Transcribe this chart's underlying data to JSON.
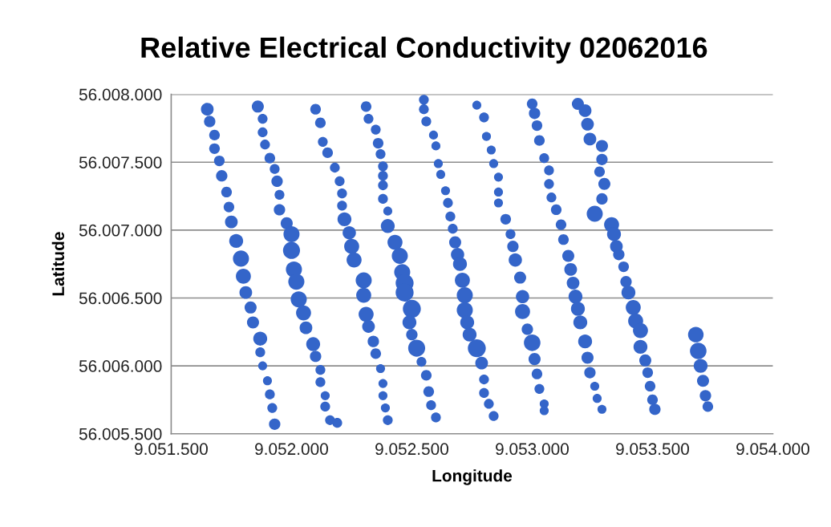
{
  "chart_data": {
    "type": "bubble",
    "title": "Relative Electrical Conductivity 02062016",
    "xlabel": "Longitude",
    "ylabel": "Latitude",
    "xlim": [
      9051500,
      9054000
    ],
    "xticks": [
      {
        "value": 9051500,
        "label": "9.051.500"
      },
      {
        "value": 9052000,
        "label": "9.052.000"
      },
      {
        "value": 9052500,
        "label": "9.052.500"
      },
      {
        "value": 9053000,
        "label": "9.053.000"
      },
      {
        "value": 9053500,
        "label": "9.053.500"
      },
      {
        "value": 9054000,
        "label": "9.054.000"
      }
    ],
    "ylim": [
      56005500,
      56008000
    ],
    "yticks": [
      {
        "value": 56005500,
        "label": "56.005.500"
      },
      {
        "value": 56006000,
        "label": "56.006.000"
      },
      {
        "value": 56006500,
        "label": "56.006.500"
      },
      {
        "value": 56007000,
        "label": "56.007.000"
      },
      {
        "value": 56007500,
        "label": "56.007.500"
      },
      {
        "value": 56008000,
        "label": "56.008.000"
      }
    ],
    "grid": "y",
    "legend": false,
    "marker": "circle",
    "series": [
      {
        "color": "#3465c9",
        "x": [
          9051650,
          9051660,
          9051680,
          9051680,
          9051700,
          9051710,
          9051730,
          9051740,
          9051750,
          9051770,
          9051790,
          9051800,
          9051810,
          9051830,
          9051840,
          9051870,
          9051870,
          9051880,
          9051900,
          9051910,
          9051920,
          9051930,
          9051860,
          9051880,
          9051880,
          9051890,
          9051910,
          9051930,
          9051940,
          9051950,
          9051950,
          9051980,
          9052000,
          9052000,
          9052010,
          9052020,
          9052030,
          9052050,
          9052060,
          9052090,
          9052100,
          9052120,
          9052120,
          9052140,
          9052140,
          9052160,
          9052190,
          9052100,
          9052120,
          9052130,
          9052150,
          9052180,
          9052200,
          9052210,
          9052210,
          9052220,
          9052240,
          9052250,
          9052260,
          9052300,
          9052300,
          9052310,
          9052320,
          9052340,
          9052350,
          9052370,
          9052380,
          9052380,
          9052390,
          9052400,
          9052310,
          9052320,
          9052350,
          9052360,
          9052370,
          9052380,
          9052380,
          9052380,
          9052380,
          9052400,
          9052400,
          9052430,
          9052450,
          9052460,
          9052470,
          9052470,
          9052500,
          9052490,
          9052500,
          9052520,
          9052540,
          9052560,
          9052570,
          9052580,
          9052600,
          9052550,
          9052550,
          9052560,
          9052590,
          9052600,
          9052610,
          9052620,
          9052640,
          9052650,
          9052660,
          9052670,
          9052680,
          9052690,
          9052700,
          9052710,
          9052720,
          9052720,
          9052730,
          9052740,
          9052770,
          9052790,
          9052800,
          9052800,
          9052820,
          9052840,
          9052770,
          9052800,
          9052810,
          9052830,
          9052840,
          9052860,
          9052860,
          9052860,
          9052890,
          9052910,
          9052920,
          9052930,
          9052950,
          9052960,
          9052960,
          9052980,
          9053000,
          9053010,
          9053020,
          9053030,
          9053050,
          9053050,
          9053000,
          9053010,
          9053020,
          9053030,
          9053050,
          9053070,
          9053070,
          9053080,
          9053100,
          9053120,
          9053130,
          9053150,
          9053160,
          9053170,
          9053180,
          9053190,
          9053200,
          9053220,
          9053230,
          9053240,
          9053260,
          9053270,
          9053290,
          9053190,
          9053220,
          9053230,
          9053240,
          9053290,
          9053290,
          9053280,
          9053300,
          9053290,
          9053260,
          9053330,
          9053340,
          9053350,
          9053360,
          9053380,
          9053390,
          9053400,
          9053420,
          9053430,
          9053450,
          9053450,
          9053470,
          9053480,
          9053490,
          9053500,
          9053510,
          9053680,
          9053690,
          9053700,
          9053710,
          9053720,
          9053730
        ],
        "values": [
          56007890,
          56007800,
          56007700,
          56007600,
          56007510,
          56007400,
          56007280,
          56007170,
          56007060,
          56006920,
          56006790,
          56006660,
          56006540,
          56006430,
          56006320,
          56006200,
          56006100,
          56006000,
          56005890,
          56005790,
          56005690,
          56005570,
          56007910,
          56007820,
          56007720,
          56007630,
          56007530,
          56007450,
          56007360,
          56007260,
          56007150,
          56007050,
          56006970,
          56006850,
          56006710,
          56006620,
          56006490,
          56006390,
          56006280,
          56006160,
          56006070,
          56005970,
          56005880,
          56005780,
          56005700,
          56005600,
          56005580,
          56007890,
          56007790,
          56007650,
          56007570,
          56007460,
          56007360,
          56007270,
          56007180,
          56007080,
          56006980,
          56006880,
          56006780,
          56006630,
          56006520,
          56006380,
          56006290,
          56006180,
          56006090,
          56005980,
          56005870,
          56005780,
          56005690,
          56005600,
          56007910,
          56007820,
          56007740,
          56007640,
          56007560,
          56007470,
          56007400,
          56007330,
          56007230,
          56007140,
          56007030,
          56006910,
          56006810,
          56006690,
          56006610,
          56006540,
          56006420,
          56006320,
          56006230,
          56006130,
          56006030,
          56005930,
          56005810,
          56005710,
          56005620,
          56007960,
          56007890,
          56007800,
          56007700,
          56007620,
          56007490,
          56007410,
          56007290,
          56007200,
          56007100,
          56007010,
          56006910,
          56006820,
          56006750,
          56006630,
          56006520,
          56006410,
          56006320,
          56006230,
          56006130,
          56006020,
          56005900,
          56005800,
          56005720,
          56005630,
          56007920,
          56007830,
          56007690,
          56007590,
          56007490,
          56007390,
          56007280,
          56007200,
          56007080,
          56006970,
          56006880,
          56006780,
          56006650,
          56006510,
          56006400,
          56006270,
          56006170,
          56006050,
          56005940,
          56005830,
          56005720,
          56005670,
          56007930,
          56007860,
          56007770,
          56007660,
          56007530,
          56007440,
          56007340,
          56007240,
          56007150,
          56007040,
          56006930,
          56006810,
          56006710,
          56006610,
          56006510,
          56006420,
          56006320,
          56006180,
          56006060,
          56005950,
          56005850,
          56005760,
          56005680,
          56007930,
          56007880,
          56007780,
          56007670,
          56007620,
          56007520,
          56007430,
          56007340,
          56007230,
          56007120,
          56007040,
          56006970,
          56006880,
          56006820,
          56006730,
          56006620,
          56006540,
          56006430,
          56006330,
          56006260,
          56006140,
          56006040,
          56005950,
          56005850,
          56005750,
          56005680,
          56006230,
          56006110,
          56006000,
          56005890,
          56005780,
          56005700
        ],
        "sizes": [
          0.5,
          0.4,
          0.35,
          0.35,
          0.35,
          0.4,
          0.35,
          0.35,
          0.5,
          0.6,
          0.8,
          0.7,
          0.5,
          0.45,
          0.45,
          0.6,
          0.3,
          0.25,
          0.25,
          0.3,
          0.3,
          0.4,
          0.45,
          0.3,
          0.3,
          0.3,
          0.35,
          0.3,
          0.4,
          0.3,
          0.4,
          0.45,
          0.8,
          0.9,
          0.8,
          0.8,
          0.8,
          0.7,
          0.5,
          0.6,
          0.4,
          0.3,
          0.3,
          0.25,
          0.3,
          0.3,
          0.3,
          0.35,
          0.35,
          0.3,
          0.35,
          0.3,
          0.3,
          0.3,
          0.3,
          0.6,
          0.55,
          0.7,
          0.7,
          0.8,
          0.7,
          0.7,
          0.5,
          0.4,
          0.35,
          0.25,
          0.25,
          0.25,
          0.25,
          0.3,
          0.35,
          0.3,
          0.3,
          0.35,
          0.3,
          0.3,
          0.3,
          0.3,
          0.3,
          0.25,
          0.6,
          0.7,
          0.8,
          0.8,
          1,
          1,
          1,
          0.6,
          0.4,
          0.9,
          0.3,
          0.35,
          0.35,
          0.3,
          0.3,
          0.3,
          0.3,
          0.3,
          0.25,
          0.25,
          0.25,
          0.25,
          0.25,
          0.3,
          0.3,
          0.3,
          0.45,
          0.55,
          0.6,
          0.7,
          0.8,
          0.8,
          0.6,
          0.6,
          1,
          0.5,
          0.3,
          0.3,
          0.3,
          0.3,
          0.25,
          0.3,
          0.25,
          0.25,
          0.25,
          0.25,
          0.25,
          0.25,
          0.35,
          0.3,
          0.4,
          0.55,
          0.45,
          0.55,
          0.7,
          0.4,
          0.85,
          0.45,
          0.35,
          0.3,
          0.25,
          0.25,
          0.35,
          0.4,
          0.35,
          0.35,
          0.3,
          0.3,
          0.3,
          0.3,
          0.35,
          0.35,
          0.35,
          0.45,
          0.5,
          0.5,
          0.6,
          0.6,
          0.6,
          0.6,
          0.45,
          0.4,
          0.25,
          0.25,
          0.25,
          0.45,
          0.5,
          0.5,
          0.5,
          0.45,
          0.4,
          0.35,
          0.45,
          0.4,
          0.8,
          0.7,
          0.6,
          0.5,
          0.4,
          0.35,
          0.4,
          0.6,
          0.7,
          0.7,
          0.7,
          0.6,
          0.45,
          0.35,
          0.35,
          0.35,
          0.4,
          0.75,
          0.85,
          0.6,
          0.45,
          0.4,
          0.35
        ]
      }
    ]
  }
}
